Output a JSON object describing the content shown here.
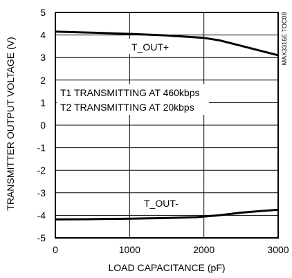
{
  "chart_data": {
    "type": "line",
    "title": "",
    "xlabel": "LOAD CAPACITANCE (pF)",
    "ylabel": "TRANSMITTER OUTPUT VOLTAGE (V)",
    "xlim": [
      0,
      3000
    ],
    "ylim": [
      -5,
      5
    ],
    "x_ticks": [
      "0",
      "1000",
      "2000",
      "3000"
    ],
    "y_ticks": [
      "5",
      "4",
      "3",
      "2",
      "1",
      "0",
      "-1",
      "-2",
      "-3",
      "-4",
      "-5"
    ],
    "grid": true,
    "series": [
      {
        "name": "T_OUT+",
        "x": [
          0,
          500,
          1000,
          1500,
          2000,
          2200,
          2500,
          2800,
          3000
        ],
        "y": [
          4.15,
          4.1,
          4.05,
          3.98,
          3.87,
          3.77,
          3.52,
          3.27,
          3.1
        ]
      },
      {
        "name": "T_OUT-",
        "x": [
          0,
          500,
          1000,
          1500,
          1900,
          2200,
          2500,
          2800,
          3000
        ],
        "y": [
          -4.18,
          -4.17,
          -4.15,
          -4.12,
          -4.08,
          -4.0,
          -3.88,
          -3.8,
          -3.75
        ]
      }
    ],
    "annotations": [
      "T1 TRANSMITTING AT 460kbps",
      "T2 TRANSMITTING AT 20kbps"
    ],
    "figure_code": "MAX3316E TOC08"
  }
}
